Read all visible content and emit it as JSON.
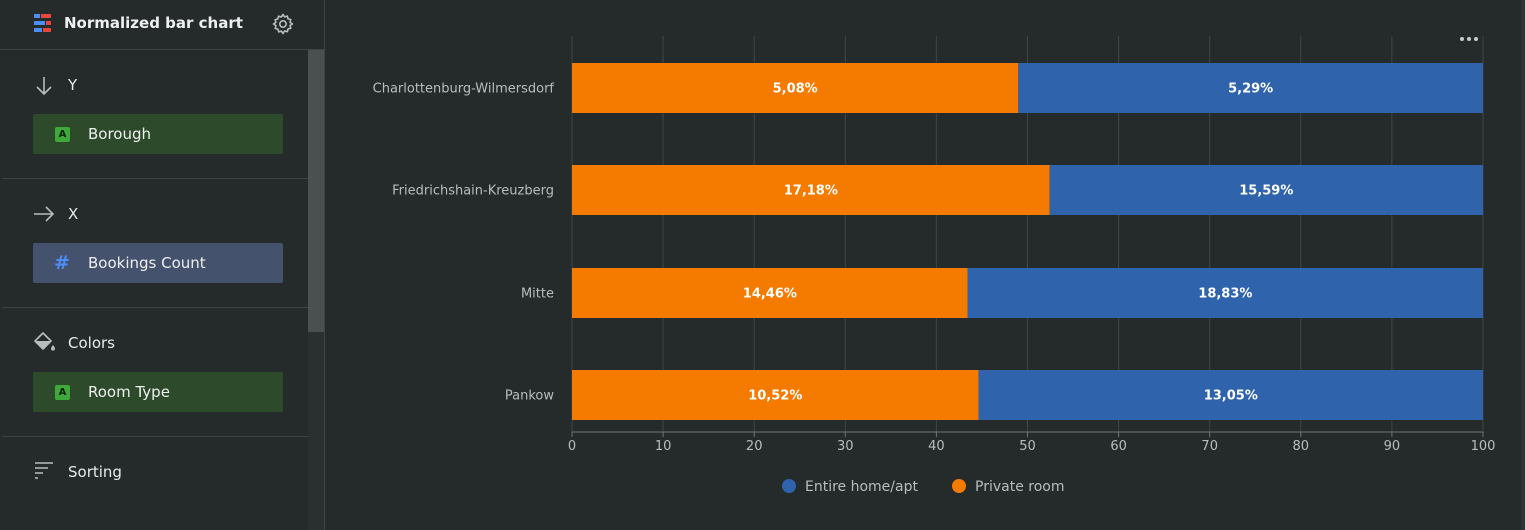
{
  "sidebar": {
    "title": "Normalized bar chart",
    "header_icon": "chart-app-icon",
    "settings_icon": "gear-icon",
    "sections": {
      "y": {
        "label": "Y",
        "icon": "arrow-down-icon",
        "field": {
          "label": "Borough",
          "type_badge": "A",
          "kind": "dimension"
        }
      },
      "x": {
        "label": "X",
        "icon": "arrow-right-icon",
        "field": {
          "label": "Bookings Count",
          "type_badge": "#",
          "kind": "measure"
        }
      },
      "colors": {
        "label": "Colors",
        "icon": "paint-bucket-icon",
        "field": {
          "label": "Room Type",
          "type_badge": "A",
          "kind": "dimension"
        }
      },
      "sorting": {
        "label": "Sorting",
        "icon": "sort-icon"
      }
    }
  },
  "colors": {
    "entire_home": "#2f64ad",
    "private_room": "#f57b00",
    "dimension_chip": "#2d4a2b",
    "measure_chip": "#45526d"
  },
  "chart_data": {
    "type": "bar",
    "orientation": "horizontal",
    "stacked": "normalized",
    "categories": [
      "Charlottenburg-Wilmersdorf",
      "Friedrichshain-Kreuzberg",
      "Mitte",
      "Pankow"
    ],
    "series": [
      {
        "name": "Private room",
        "values": [
          48.99,
          52.43,
          43.44,
          44.63
        ],
        "labels": [
          "5,08%",
          "17,18%",
          "14,46%",
          "10,52%"
        ],
        "color": "#f57b00"
      },
      {
        "name": "Entire home/apt",
        "values": [
          51.01,
          47.57,
          56.56,
          55.37
        ],
        "labels": [
          "5,29%",
          "15,59%",
          "18,83%",
          "13,05%"
        ],
        "color": "#2f64ad"
      }
    ],
    "xlim": [
      0,
      100
    ],
    "xticks": [
      "0",
      "10",
      "20",
      "30",
      "40",
      "50",
      "60",
      "70",
      "80",
      "90",
      "100"
    ],
    "legend": {
      "placement": "bottom",
      "order": [
        "Entire home/apt",
        "Private room"
      ]
    },
    "grid": true
  }
}
